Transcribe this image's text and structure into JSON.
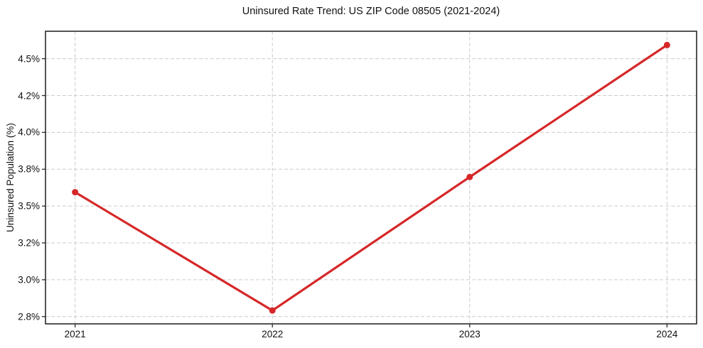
{
  "chart_data": {
    "type": "line",
    "title": "Uninsured Rate Trend: US ZIP Code 08505 (2021-2024)",
    "xlabel": "",
    "ylabel": "Uninsured Population (%)",
    "x": [
      2021,
      2022,
      2023,
      2024
    ],
    "values": [
      3.62,
      2.84,
      3.72,
      4.59
    ],
    "series_name": "Uninsured rate (%)",
    "x_ticks": [
      {
        "value": 2021,
        "label": "2021"
      },
      {
        "value": 2022,
        "label": "2022"
      },
      {
        "value": 2023,
        "label": "2023"
      },
      {
        "value": 2024,
        "label": "2024"
      }
    ],
    "y_ticks": [
      {
        "value": 2.8,
        "label": "2.8%"
      },
      {
        "value": 3.04286,
        "label": "3.0%"
      },
      {
        "value": 3.28571,
        "label": "3.2%"
      },
      {
        "value": 3.52857,
        "label": "3.5%"
      },
      {
        "value": 3.77143,
        "label": "3.8%"
      },
      {
        "value": 4.01429,
        "label": "4.0%"
      },
      {
        "value": 4.25714,
        "label": "4.2%"
      },
      {
        "value": 4.5,
        "label": "4.5%"
      }
    ],
    "xlim": [
      2020.85,
      2024.15
    ],
    "ylim": [
      2.752,
      4.681
    ],
    "grid": true,
    "grid_style": "dashed",
    "legend": false,
    "line_color": "#d62728",
    "marker_color": "#d62728",
    "grid_color": "#cccccc",
    "spine_color": "#2a2a2a",
    "background_color": "#ffffff"
  }
}
